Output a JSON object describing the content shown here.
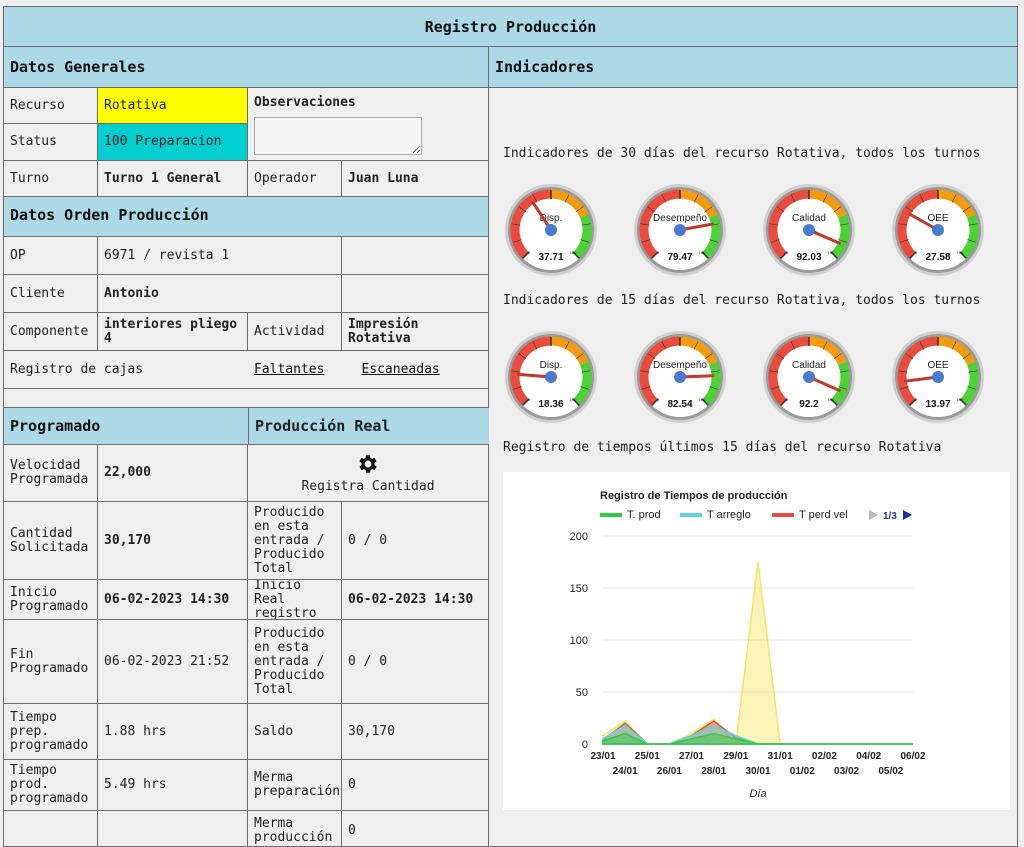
{
  "title": "Registro Producción",
  "datos_generales": {
    "header": "Datos Generales",
    "recurso_label": "Recurso",
    "recurso_value": "Rotativa",
    "status_label": "Status",
    "status_value": "100 Preparacion",
    "observaciones_label": "Observaciones",
    "observaciones_value": "",
    "turno_label": "Turno",
    "turno_value": "Turno 1 General",
    "operador_label": "Operador",
    "operador_value": "Juan Luna"
  },
  "orden": {
    "header": "Datos Orden Producción",
    "op_label": "OP",
    "op_value": "6971 / revista 1",
    "cliente_label": "Cliente",
    "cliente_value": "Antonio",
    "componente_label": "Componente",
    "componente_value": "interiores pliego 4",
    "actividad_label": "Actividad",
    "actividad_value": "Impresión Rotativa",
    "cajas_label": "Registro de cajas",
    "faltantes": "Faltantes",
    "escaneadas": "Escaneadas"
  },
  "programado": {
    "header": "Programado",
    "velocidad_label": "Velocidad Programada",
    "velocidad_value": "22,000",
    "cantidad_label": "Cantidad Solicitada",
    "cantidad_value": "30,170",
    "inicio_label": "Inicio Programado",
    "inicio_value": "06-02-2023 14:30",
    "fin_label": "Fin Programado",
    "fin_value": "06-02-2023 21:52",
    "tprep_label": "Tiempo prep. programado",
    "tprep_value": "1.88 hrs",
    "tprod_label": "Tiempo prod. programado",
    "tprod_value": "5.49 hrs"
  },
  "real": {
    "header": "Producción Real",
    "registra_label": "Registra Cantidad",
    "producido1_label": "Producido en esta entrada / Producido Total",
    "producido1_value": "0 / 0",
    "inicio_label": "Inicio Real registro",
    "inicio_value": "06-02-2023 14:30",
    "producido2_label": "Producido en esta entrada / Producido Total",
    "producido2_value": "0 / 0",
    "saldo_label": "Saldo",
    "saldo_value": "30,170",
    "merma_prep_label": "Merma preparación",
    "merma_prep_value": "0",
    "merma_prod_label": "Merma producción",
    "merma_prod_value": "0"
  },
  "indicadores": {
    "header": "Indicadores",
    "sub30": "Indicadores de 30 días del recurso Rotativa, todos los turnos",
    "sub15": "Indicadores de 15 días del recurso Rotativa, todos los turnos",
    "tiempos": "Registro de tiempos últimos 15 días del recurso Rotativa",
    "gauges30": [
      {
        "name": "Disp.",
        "value": 37.71
      },
      {
        "name": "Desempeño",
        "value": 79.47
      },
      {
        "name": "Calidad",
        "value": 92.03
      },
      {
        "name": "OEE",
        "value": 27.58
      }
    ],
    "gauges15": [
      {
        "name": "Disp.",
        "value": 18.36
      },
      {
        "name": "Desempeño",
        "value": 82.54
      },
      {
        "name": "Calidad",
        "value": 92.2
      },
      {
        "name": "OEE",
        "value": 13.97
      }
    ],
    "gauge_min": "0",
    "gauge_max": "100"
  },
  "chart_data": {
    "type": "area",
    "title": "Registro de Tiempos de producción",
    "xlabel": "Día",
    "ylabel": "",
    "ylim": [
      0,
      200
    ],
    "yticks": [
      0,
      50,
      100,
      150,
      200
    ],
    "pager": "1/3",
    "categories": [
      "23/01",
      "24/01",
      "25/01",
      "26/01",
      "27/01",
      "28/01",
      "29/01",
      "30/01",
      "31/01",
      "01/02",
      "02/02",
      "03/02",
      "04/02",
      "05/02",
      "06/02"
    ],
    "series": [
      {
        "name": "T. prod",
        "color": "#2ecc40",
        "values": [
          3,
          10,
          0,
          0,
          5,
          10,
          5,
          0,
          0,
          0,
          0,
          0,
          0,
          0,
          0
        ]
      },
      {
        "name": "T arreglo",
        "color": "#5bd3e6",
        "values": [
          5,
          18,
          0,
          0,
          8,
          18,
          8,
          0,
          0,
          0,
          0,
          0,
          0,
          0,
          0
        ]
      },
      {
        "name": "T perd vel",
        "color": "#e74c3c",
        "values": [
          4,
          20,
          0,
          0,
          8,
          22,
          6,
          0,
          0,
          0,
          0,
          0,
          0,
          0,
          0
        ]
      },
      {
        "name": "",
        "color": "#f5e663",
        "values": [
          8,
          22,
          0,
          0,
          10,
          24,
          0,
          175,
          0,
          0,
          0,
          0,
          0,
          0,
          0
        ]
      }
    ]
  },
  "colors": {
    "header_bg": "#add8e6",
    "recurso_bg": "#ffff00",
    "status_bg": "#00ced1"
  }
}
